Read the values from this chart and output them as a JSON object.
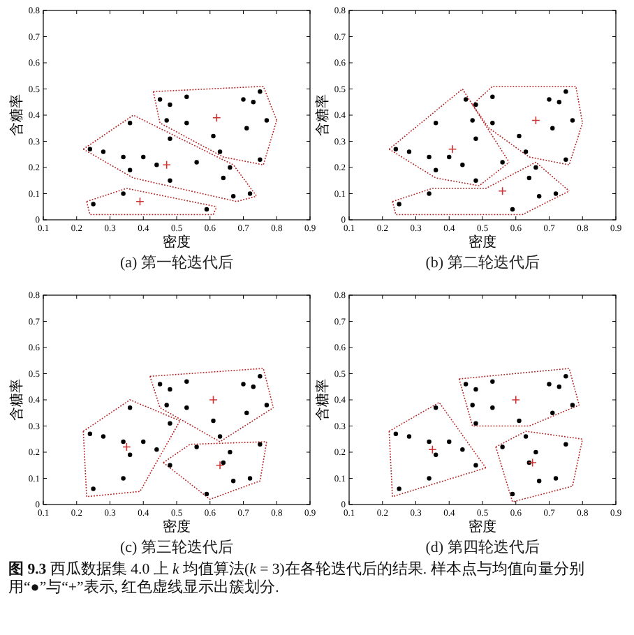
{
  "chart_data": [
    {
      "type": "scatter",
      "title": "(a) 第一轮迭代后",
      "xlabel": "密度",
      "ylabel": "含糖率",
      "xlim": [
        0.1,
        0.9
      ],
      "ylim": [
        0,
        0.8
      ],
      "xticks": [
        0.1,
        0.2,
        0.3,
        0.4,
        0.5,
        0.6,
        0.7,
        0.8,
        0.9
      ],
      "yticks": [
        0,
        0.1,
        0.2,
        0.3,
        0.4,
        0.5,
        0.6,
        0.7,
        0.8
      ],
      "series": [
        {
          "type": "line",
          "color": "#b22222",
          "line_style": "dotted",
          "x": [
            0.43,
            0.76,
            0.8
          ],
          "values": [
            0.49,
            0.51,
            0.38
          ]
        },
        {
          "type": "line",
          "color": "#b22222",
          "line_style": "dotted",
          "x": [
            0.43,
            0.45,
            0.64,
            0.76,
            0.8
          ],
          "values": [
            0.49,
            0.37,
            0.24,
            0.21,
            0.38
          ]
        },
        {
          "type": "line",
          "color": "#b22222",
          "line_style": "dotted",
          "x": [
            0.22,
            0.37,
            0.67,
            0.74
          ],
          "values": [
            0.27,
            0.4,
            0.21,
            0.09
          ]
        },
        {
          "type": "line",
          "color": "#b22222",
          "line_style": "dotted",
          "x": [
            0.22,
            0.37,
            0.68,
            0.74
          ],
          "values": [
            0.27,
            0.16,
            0.07,
            0.09
          ]
        },
        {
          "type": "line",
          "color": "#b22222",
          "line_style": "dotted",
          "x": [
            0.23,
            0.35,
            0.62
          ],
          "values": [
            0.07,
            0.12,
            0.05
          ]
        },
        {
          "type": "line",
          "color": "#b22222",
          "line_style": "dotted",
          "x": [
            0.23,
            0.24,
            0.61,
            0.62
          ],
          "values": [
            0.07,
            0.02,
            0.02,
            0.05
          ]
        },
        {
          "type": "scatter",
          "color": "#000000",
          "marker": "circle",
          "x": [
            0.7,
            0.77,
            0.63,
            0.61,
            0.56,
            0.4,
            0.48,
            0.44,
            0.67,
            0.24,
            0.25,
            0.34,
            0.64,
            0.66,
            0.36,
            0.59,
            0.72,
            0.36,
            0.34,
            0.28,
            0.75,
            0.71,
            0.48,
            0.48,
            0.53,
            0.75,
            0.53,
            0.47,
            0.73,
            0.45
          ],
          "values": [
            0.46,
            0.38,
            0.26,
            0.32,
            0.22,
            0.24,
            0.15,
            0.21,
            0.09,
            0.27,
            0.06,
            0.1,
            0.16,
            0.2,
            0.37,
            0.04,
            0.1,
            0.19,
            0.24,
            0.26,
            0.23,
            0.35,
            0.31,
            0.44,
            0.37,
            0.49,
            0.47,
            0.38,
            0.45,
            0.46
          ]
        },
        {
          "type": "scatter",
          "color": "#cc3333",
          "marker": "cross",
          "x": [
            0.47,
            0.39,
            0.62
          ],
          "values": [
            0.21,
            0.07,
            0.39
          ]
        }
      ]
    },
    {
      "type": "scatter",
      "title": "(b) 第二轮迭代后",
      "xlabel": "密度",
      "ylabel": "含糖率",
      "xlim": [
        0.1,
        0.9
      ],
      "ylim": [
        0,
        0.8
      ],
      "xticks": [
        0.1,
        0.2,
        0.3,
        0.4,
        0.5,
        0.6,
        0.7,
        0.8,
        0.9
      ],
      "yticks": [
        0,
        0.1,
        0.2,
        0.3,
        0.4,
        0.5,
        0.6,
        0.7,
        0.8
      ],
      "series": [
        {
          "type": "line",
          "color": "#b22222",
          "line_style": "dotted",
          "x": [
            0.22,
            0.44,
            0.58
          ],
          "values": [
            0.27,
            0.5,
            0.22
          ]
        },
        {
          "type": "line",
          "color": "#b22222",
          "line_style": "dotted",
          "x": [
            0.22,
            0.36,
            0.49,
            0.58
          ],
          "values": [
            0.27,
            0.16,
            0.13,
            0.22
          ]
        },
        {
          "type": "line",
          "color": "#b22222",
          "line_style": "dotted",
          "x": [
            0.47,
            0.53,
            0.78,
            0.8
          ],
          "values": [
            0.44,
            0.51,
            0.51,
            0.37
          ]
        },
        {
          "type": "line",
          "color": "#b22222",
          "line_style": "dotted",
          "x": [
            0.47,
            0.52,
            0.64,
            0.76,
            0.8
          ],
          "values": [
            0.44,
            0.35,
            0.24,
            0.21,
            0.37
          ]
        },
        {
          "type": "line",
          "color": "#b22222",
          "line_style": "dotted",
          "x": [
            0.23,
            0.35,
            0.51,
            0.66,
            0.76
          ],
          "values": [
            0.07,
            0.12,
            0.12,
            0.22,
            0.11
          ]
        },
        {
          "type": "line",
          "color": "#b22222",
          "line_style": "dotted",
          "x": [
            0.23,
            0.24,
            0.62,
            0.76
          ],
          "values": [
            0.07,
            0.02,
            0.02,
            0.11
          ]
        },
        {
          "type": "scatter",
          "color": "#000000",
          "marker": "circle",
          "x": [
            0.7,
            0.77,
            0.63,
            0.61,
            0.56,
            0.4,
            0.48,
            0.44,
            0.67,
            0.24,
            0.25,
            0.34,
            0.64,
            0.66,
            0.36,
            0.59,
            0.72,
            0.36,
            0.34,
            0.28,
            0.75,
            0.71,
            0.48,
            0.48,
            0.53,
            0.75,
            0.53,
            0.47,
            0.73,
            0.45
          ],
          "values": [
            0.46,
            0.38,
            0.26,
            0.32,
            0.22,
            0.24,
            0.15,
            0.21,
            0.09,
            0.27,
            0.06,
            0.1,
            0.16,
            0.2,
            0.37,
            0.04,
            0.1,
            0.19,
            0.24,
            0.26,
            0.23,
            0.35,
            0.31,
            0.44,
            0.37,
            0.49,
            0.47,
            0.38,
            0.45,
            0.46
          ]
        },
        {
          "type": "scatter",
          "color": "#cc3333",
          "marker": "cross",
          "x": [
            0.41,
            0.56,
            0.66
          ],
          "values": [
            0.27,
            0.11,
            0.38
          ]
        }
      ]
    },
    {
      "type": "scatter",
      "title": "(c) 第三轮迭代后",
      "xlabel": "密度",
      "ylabel": "含糖率",
      "xlim": [
        0.1,
        0.9
      ],
      "ylim": [
        0,
        0.8
      ],
      "xticks": [
        0.1,
        0.2,
        0.3,
        0.4,
        0.5,
        0.6,
        0.7,
        0.8,
        0.9
      ],
      "yticks": [
        0,
        0.1,
        0.2,
        0.3,
        0.4,
        0.5,
        0.6,
        0.7,
        0.8
      ],
      "series": [
        {
          "type": "line",
          "color": "#b22222",
          "line_style": "dotted",
          "x": [
            0.22,
            0.36,
            0.51
          ],
          "values": [
            0.28,
            0.4,
            0.32
          ]
        },
        {
          "type": "line",
          "color": "#b22222",
          "line_style": "dotted",
          "x": [
            0.22,
            0.23,
            0.39,
            0.51
          ],
          "values": [
            0.28,
            0.03,
            0.05,
            0.32
          ]
        },
        {
          "type": "line",
          "color": "#b22222",
          "line_style": "dotted",
          "x": [
            0.42,
            0.76,
            0.79
          ],
          "values": [
            0.49,
            0.52,
            0.37
          ]
        },
        {
          "type": "line",
          "color": "#b22222",
          "line_style": "dotted",
          "x": [
            0.42,
            0.45,
            0.63,
            0.79
          ],
          "values": [
            0.49,
            0.37,
            0.24,
            0.37
          ]
        },
        {
          "type": "line",
          "color": "#b22222",
          "line_style": "dotted",
          "x": [
            0.46,
            0.54,
            0.77
          ],
          "values": [
            0.16,
            0.23,
            0.24
          ]
        },
        {
          "type": "line",
          "color": "#b22222",
          "line_style": "dotted",
          "x": [
            0.46,
            0.6,
            0.75,
            0.77
          ],
          "values": [
            0.16,
            0.02,
            0.09,
            0.24
          ]
        },
        {
          "type": "scatter",
          "color": "#000000",
          "marker": "circle",
          "x": [
            0.7,
            0.77,
            0.63,
            0.61,
            0.56,
            0.4,
            0.48,
            0.44,
            0.67,
            0.24,
            0.25,
            0.34,
            0.64,
            0.66,
            0.36,
            0.59,
            0.72,
            0.36,
            0.34,
            0.28,
            0.75,
            0.71,
            0.48,
            0.48,
            0.53,
            0.75,
            0.53,
            0.47,
            0.73,
            0.45
          ],
          "values": [
            0.46,
            0.38,
            0.26,
            0.32,
            0.22,
            0.24,
            0.15,
            0.21,
            0.09,
            0.27,
            0.06,
            0.1,
            0.16,
            0.2,
            0.37,
            0.04,
            0.1,
            0.19,
            0.24,
            0.26,
            0.23,
            0.35,
            0.31,
            0.44,
            0.37,
            0.49,
            0.47,
            0.38,
            0.45,
            0.46
          ]
        },
        {
          "type": "scatter",
          "color": "#cc3333",
          "marker": "cross",
          "x": [
            0.61,
            0.35,
            0.63
          ],
          "values": [
            0.4,
            0.22,
            0.15
          ]
        }
      ]
    },
    {
      "type": "scatter",
      "title": "(d) 第四轮迭代后",
      "xlabel": "密度",
      "ylabel": "含糖率",
      "xlim": [
        0.1,
        0.9
      ],
      "ylim": [
        0,
        0.8
      ],
      "xticks": [
        0.1,
        0.2,
        0.3,
        0.4,
        0.5,
        0.6,
        0.7,
        0.8,
        0.9
      ],
      "yticks": [
        0,
        0.1,
        0.2,
        0.3,
        0.4,
        0.5,
        0.6,
        0.7,
        0.8
      ],
      "series": [
        {
          "type": "line",
          "color": "#b22222",
          "line_style": "dotted",
          "x": [
            0.22,
            0.37,
            0.51
          ],
          "values": [
            0.28,
            0.39,
            0.14
          ]
        },
        {
          "type": "line",
          "color": "#b22222",
          "line_style": "dotted",
          "x": [
            0.22,
            0.23,
            0.51
          ],
          "values": [
            0.28,
            0.03,
            0.14
          ]
        },
        {
          "type": "line",
          "color": "#b22222",
          "line_style": "dotted",
          "x": [
            0.43,
            0.76,
            0.79
          ],
          "values": [
            0.48,
            0.52,
            0.38
          ]
        },
        {
          "type": "line",
          "color": "#b22222",
          "line_style": "dotted",
          "x": [
            0.43,
            0.47,
            0.64,
            0.79
          ],
          "values": [
            0.48,
            0.3,
            0.3,
            0.38
          ]
        },
        {
          "type": "line",
          "color": "#b22222",
          "line_style": "dotted",
          "x": [
            0.54,
            0.63,
            0.8
          ],
          "values": [
            0.22,
            0.28,
            0.25
          ]
        },
        {
          "type": "line",
          "color": "#b22222",
          "line_style": "dotted",
          "x": [
            0.54,
            0.59,
            0.77,
            0.8
          ],
          "values": [
            0.22,
            0.01,
            0.07,
            0.25
          ]
        },
        {
          "type": "scatter",
          "color": "#000000",
          "marker": "circle",
          "x": [
            0.7,
            0.77,
            0.63,
            0.61,
            0.56,
            0.4,
            0.48,
            0.44,
            0.67,
            0.24,
            0.25,
            0.34,
            0.64,
            0.66,
            0.36,
            0.59,
            0.72,
            0.36,
            0.34,
            0.28,
            0.75,
            0.71,
            0.48,
            0.48,
            0.53,
            0.75,
            0.53,
            0.47,
            0.73,
            0.45
          ],
          "values": [
            0.46,
            0.38,
            0.26,
            0.32,
            0.22,
            0.24,
            0.15,
            0.21,
            0.09,
            0.27,
            0.06,
            0.1,
            0.16,
            0.2,
            0.37,
            0.04,
            0.1,
            0.19,
            0.24,
            0.26,
            0.23,
            0.35,
            0.31,
            0.44,
            0.37,
            0.49,
            0.47,
            0.38,
            0.45,
            0.46
          ]
        },
        {
          "type": "scatter",
          "color": "#cc3333",
          "marker": "cross",
          "x": [
            0.6,
            0.35,
            0.65
          ],
          "values": [
            0.4,
            0.21,
            0.16
          ]
        }
      ]
    },
    {
      "type": "other",
      "title": "**图 9.3** 西瓜数据集 4.0 上 *k* 均值算法(*k* = 3)在各轮迭代后的结果. 样本点与均值向量分别用“●”与“+”表示, 红色虚线显示出簇划分."
    }
  ]
}
